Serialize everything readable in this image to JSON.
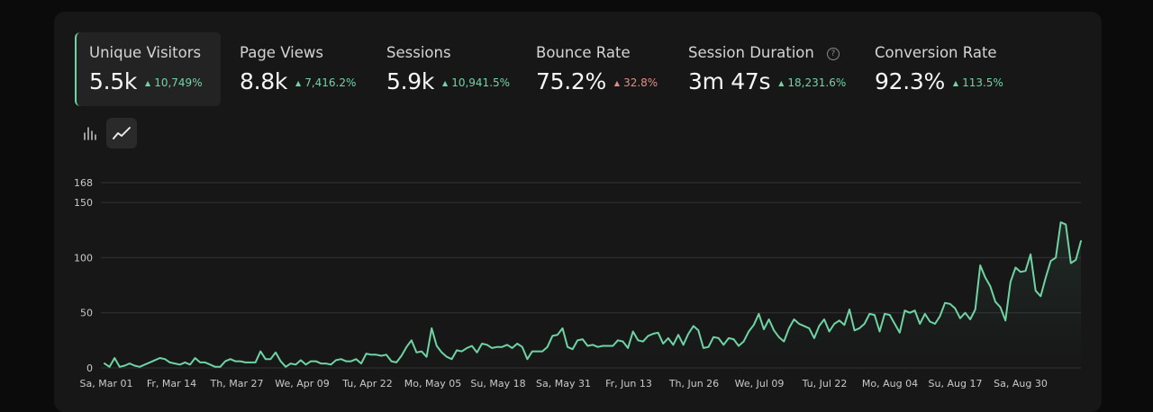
{
  "metrics": [
    {
      "label": "Unique Visitors",
      "value": "5.5k",
      "change": "10,749%",
      "direction": "up",
      "active": true
    },
    {
      "label": "Page Views",
      "value": "8.8k",
      "change": "7,416.2%",
      "direction": "up",
      "active": false
    },
    {
      "label": "Sessions",
      "value": "5.9k",
      "change": "10,941.5%",
      "direction": "up",
      "active": false
    },
    {
      "label": "Bounce Rate",
      "value": "75.2%",
      "change": "32.8%",
      "direction": "up",
      "active": false
    },
    {
      "label": "Session Duration",
      "value": "3m 47s",
      "change": "18,231.6%",
      "direction": "up",
      "active": false
    },
    {
      "label": "Conversion Rate",
      "value": "92.3%",
      "change": "113.5%",
      "direction": "up",
      "active": false
    }
  ],
  "chart_toggle": {
    "options": [
      "bar-chart-icon",
      "line-chart-icon"
    ],
    "selected": "line-chart-icon"
  },
  "colors": {
    "line": "#6fd3a4",
    "positive": "#72d3a7",
    "negative": "#e08e86"
  },
  "chart_data": {
    "type": "line",
    "ylim": [
      0,
      168
    ],
    "yticks": [
      0,
      50,
      100,
      150,
      168
    ],
    "xticks": [
      "Sa, Mar 01",
      "Fr, Mar 14",
      "Th, Mar 27",
      "We, Apr 09",
      "Tu, Apr 22",
      "Mo, May 05",
      "Su, May 18",
      "Sa, May 31",
      "Fr, Jun 13",
      "Th, Jun 26",
      "We, Jul 09",
      "Tu, Jul 22",
      "Mo, Aug 04",
      "Su, Aug 17",
      "Sa, Aug 30"
    ],
    "grid": true,
    "series": [
      {
        "values": [
          4,
          1,
          9,
          1,
          2,
          4,
          2,
          1,
          3,
          5,
          7,
          9,
          8,
          5,
          4,
          3,
          5,
          3,
          9,
          5,
          5,
          3,
          1,
          1,
          6,
          8,
          6,
          6,
          5,
          5,
          5,
          15,
          8,
          8,
          14,
          6,
          1,
          4,
          3,
          7,
          3,
          6,
          6,
          4,
          4,
          3,
          7,
          8,
          6,
          6,
          8,
          4,
          13,
          12,
          12,
          11,
          12,
          6,
          5,
          11,
          19,
          25,
          14,
          15,
          10,
          36,
          20,
          14,
          10,
          8,
          16,
          15,
          18,
          20,
          14,
          22,
          21,
          18,
          19,
          19,
          21,
          18,
          22,
          19,
          8,
          15,
          15,
          15,
          19,
          29,
          30,
          36,
          19,
          17,
          25,
          26,
          20,
          21,
          19,
          20,
          20,
          20,
          25,
          24,
          18,
          33,
          25,
          24,
          29,
          31,
          32,
          22,
          27,
          21,
          30,
          21,
          31,
          38,
          34,
          18,
          19,
          28,
          27,
          21,
          27,
          26,
          20,
          24,
          33,
          39,
          49,
          35,
          44,
          34,
          28,
          24,
          36,
          44,
          40,
          38,
          36,
          27,
          38,
          44,
          33,
          40,
          43,
          39,
          53,
          34,
          36,
          40,
          49,
          48,
          33,
          49,
          48,
          40,
          32,
          52,
          50,
          52,
          40,
          49,
          42,
          40,
          47,
          59,
          58,
          54,
          45,
          50,
          44,
          53,
          93,
          82,
          74,
          60,
          55,
          43,
          78,
          91,
          87,
          88,
          103,
          70,
          65,
          82,
          97,
          100,
          132,
          130,
          95,
          98,
          115
        ]
      }
    ]
  }
}
